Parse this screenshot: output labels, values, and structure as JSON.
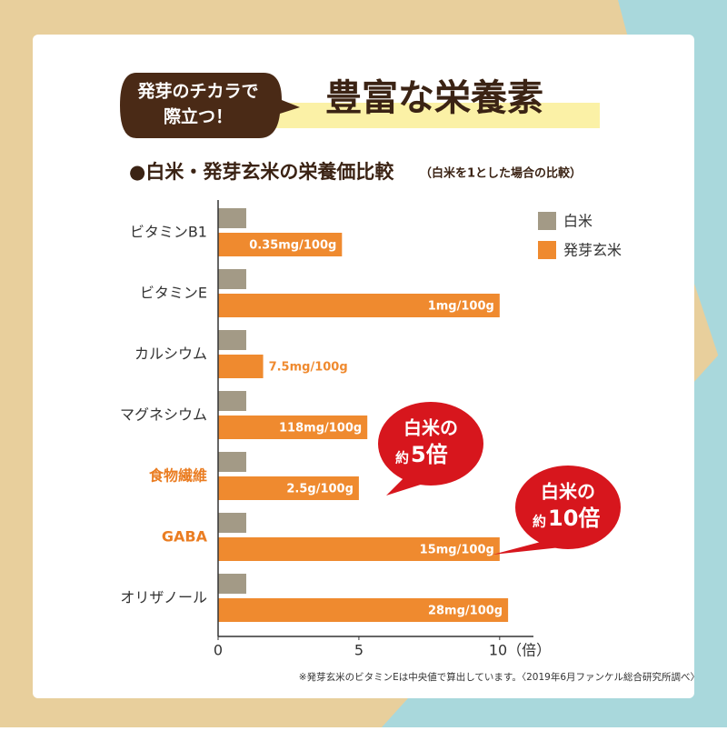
{
  "badge": {
    "lines": [
      "発芽のチカラで",
      "際立つ！"
    ]
  },
  "title": "豊富な栄養素",
  "chart_data": {
    "type": "bar",
    "orientation": "horizontal",
    "title": "●白米・発芽玄米の栄養価比較",
    "subtitle": "（白米を1とした場合の比較）",
    "categories": [
      "ビタミンB1",
      "ビタミンE",
      "カルシウム",
      "マグネシウム",
      "食物繊維",
      "GABA",
      "オリザノール"
    ],
    "category_colors": [
      "#333333",
      "#333333",
      "#333333",
      "#333333",
      "#ea7d22",
      "#ea7d22",
      "#333333"
    ],
    "series": [
      {
        "name": "白米",
        "color": "#a39a86",
        "values": [
          1,
          1,
          1,
          1,
          1,
          1,
          1
        ]
      },
      {
        "name": "発芽玄米",
        "color": "#ef8a2f",
        "values": [
          4.4,
          10,
          1.6,
          5.3,
          5,
          10,
          10.3
        ],
        "labels": [
          "0.35mg/100g",
          "1mg/100g",
          "7.5mg/100g",
          "118mg/100g",
          "2.5g/100g",
          "15mg/100g",
          "28mg/100g"
        ]
      }
    ],
    "xlim": [
      0,
      11.2
    ],
    "xticks": [
      0,
      5,
      {
        "value": 10,
        "label": "10（倍）"
      }
    ],
    "legend": "top-right",
    "callouts": [
      {
        "lines": [
          "白米の",
          "約",
          "5倍"
        ]
      },
      {
        "lines": [
          "白米の",
          "約",
          "10倍"
        ]
      }
    ],
    "footnote": "※発芽玄米のビタミンEは中央値で算出しています。〈2019年6月ファンケル総合研究所調べ〉"
  }
}
